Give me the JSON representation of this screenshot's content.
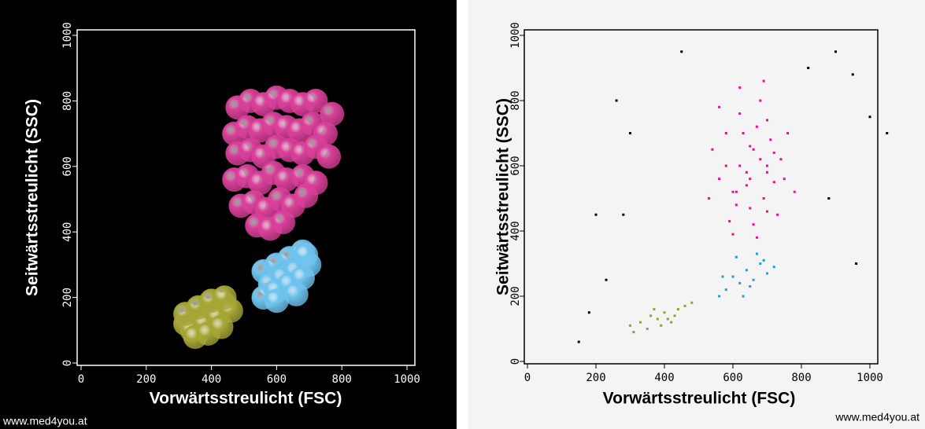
{
  "chart_data": [
    {
      "type": "scatter",
      "marker": "sphere",
      "background": "#000000",
      "axis_color": "#ffffff",
      "x_label": "Vorwärtsstreulicht (FSC)",
      "y_label": "Seitwärtsstreulicht (SSC)",
      "xlim": [
        0,
        1000
      ],
      "ylim": [
        0,
        1000
      ],
      "xticks": [
        0,
        200,
        400,
        600,
        800,
        1000
      ],
      "yticks": [
        0,
        200,
        400,
        600,
        800,
        1000
      ],
      "footer": "www.med4you.at",
      "series": [
        {
          "color": "#d9409a",
          "x": [
            480,
            520,
            560,
            600,
            640,
            680,
            720,
            770,
            470,
            510,
            550,
            590,
            630,
            670,
            710,
            750,
            480,
            520,
            560,
            600,
            640,
            680,
            720,
            760,
            470,
            510,
            550,
            590,
            630,
            680,
            720,
            490,
            530,
            570,
            610,
            650,
            690,
            540,
            580,
            620
          ],
          "values": [
            780,
            800,
            790,
            810,
            800,
            790,
            800,
            760,
            700,
            720,
            710,
            730,
            720,
            710,
            730,
            700,
            640,
            650,
            630,
            660,
            650,
            640,
            660,
            630,
            560,
            570,
            550,
            580,
            560,
            570,
            550,
            480,
            490,
            470,
            500,
            480,
            510,
            420,
            410,
            430
          ]
        },
        {
          "color": "#6ec3ee",
          "x": [
            560,
            600,
            640,
            680,
            580,
            620,
            660,
            700,
            560,
            600,
            640,
            680,
            600,
            660,
            690
          ],
          "values": [
            280,
            300,
            320,
            340,
            240,
            260,
            280,
            300,
            200,
            220,
            240,
            260,
            190,
            210,
            330
          ]
        },
        {
          "color": "#a6a636",
          "x": [
            320,
            360,
            400,
            440,
            340,
            380,
            420,
            460,
            320,
            360,
            400,
            440,
            350,
            390,
            430
          ],
          "values": [
            120,
            140,
            160,
            180,
            100,
            120,
            140,
            160,
            150,
            170,
            190,
            200,
            80,
            90,
            110
          ]
        }
      ]
    },
    {
      "type": "scatter",
      "marker": "dot",
      "background": "#f4f4f4",
      "axis_color": "#000000",
      "x_label": "Vorwärtsstreulicht (FSC)",
      "y_label": "Seitwärtsstreulicht (SSC)",
      "xlim": [
        0,
        1000
      ],
      "ylim": [
        0,
        1000
      ],
      "xticks": [
        0,
        200,
        400,
        600,
        800,
        1000
      ],
      "yticks": [
        0,
        200,
        400,
        600,
        800,
        1000
      ],
      "footer": "www.med4you.at",
      "series": [
        {
          "color": "#ff0099",
          "x": [
            620,
            650,
            680,
            700,
            600,
            640,
            660,
            720,
            580,
            610,
            690,
            740,
            560,
            630,
            670,
            710,
            750,
            590,
            650,
            700,
            620,
            680,
            540,
            760,
            600,
            660,
            720,
            640,
            580,
            700,
            530,
            780,
            620,
            690,
            650,
            610,
            730,
            670,
            560,
            700
          ],
          "values": [
            600,
            560,
            620,
            580,
            520,
            540,
            650,
            550,
            600,
            480,
            500,
            620,
            560,
            700,
            720,
            680,
            560,
            430,
            470,
            460,
            760,
            800,
            650,
            700,
            390,
            420,
            640,
            580,
            700,
            740,
            500,
            520,
            840,
            860,
            660,
            520,
            450,
            380,
            780,
            600
          ]
        },
        {
          "color": "#1e9be6",
          "x": [
            580,
            600,
            620,
            640,
            660,
            680,
            700,
            560,
            610,
            650,
            690,
            720,
            570,
            630,
            670
          ],
          "values": [
            220,
            260,
            240,
            280,
            250,
            300,
            270,
            200,
            320,
            230,
            310,
            290,
            260,
            200,
            330
          ]
        },
        {
          "color": "#9b9b2e",
          "x": [
            300,
            330,
            360,
            380,
            400,
            420,
            440,
            460,
            480,
            350,
            390,
            430,
            310,
            370,
            410
          ],
          "values": [
            110,
            120,
            140,
            130,
            150,
            120,
            160,
            170,
            180,
            100,
            110,
            140,
            90,
            160,
            130
          ]
        },
        {
          "color": "#000000",
          "x": [
            150,
            180,
            230,
            300,
            450,
            900,
            950,
            1000,
            1050,
            880,
            820,
            280,
            260,
            200,
            960
          ],
          "values": [
            60,
            150,
            250,
            700,
            950,
            950,
            880,
            750,
            700,
            500,
            900,
            450,
            800,
            450,
            300
          ]
        }
      ]
    }
  ]
}
